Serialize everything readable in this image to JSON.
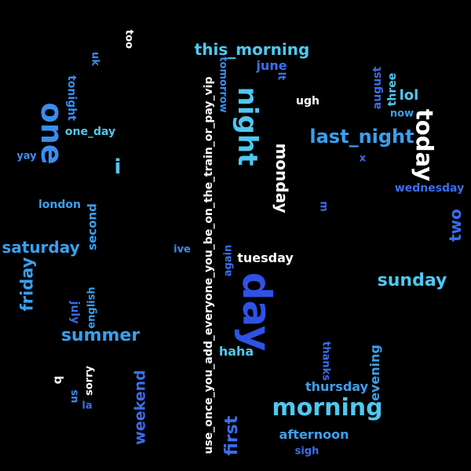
{
  "palette": {
    "background": "#000000",
    "white": "#ffffff",
    "cyan": "#4fc8f0",
    "sky": "#3aa0ee",
    "blue": "#3a6ef0",
    "royal": "#2f52e6"
  },
  "words": [
    {
      "text": "day",
      "color": "#2f52e6"
    },
    {
      "text": "one",
      "color": "#3a8ef0"
    },
    {
      "text": "night",
      "color": "#4fc8f0"
    },
    {
      "text": "today",
      "color": "#ffffff"
    },
    {
      "text": "morning",
      "color": "#4fc8f0"
    },
    {
      "text": "last_night",
      "color": "#3aa0ee"
    },
    {
      "text": "this_morning",
      "color": "#4fc8f0"
    },
    {
      "text": "monday",
      "color": "#ffffff"
    },
    {
      "text": "saturday",
      "color": "#3aa0ee"
    },
    {
      "text": "sunday",
      "color": "#4fc8f0"
    },
    {
      "text": "summer",
      "color": "#3aa0ee"
    },
    {
      "text": "friday",
      "color": "#3aa0ee"
    },
    {
      "text": "first",
      "color": "#3a6ef0"
    },
    {
      "text": "weekend",
      "color": "#3a6ef0"
    },
    {
      "text": "two",
      "color": "#3a6ef0"
    },
    {
      "text": "i",
      "color": "#4fc8f0"
    },
    {
      "text": "use_once_you_add_everyone_you_be_on_the_train_or_pay_vip",
      "color": "#ffffff"
    },
    {
      "text": "tuesday",
      "color": "#ffffff"
    },
    {
      "text": "haha",
      "color": "#4fc8f0"
    },
    {
      "text": "afternoon",
      "color": "#3aa0ee"
    },
    {
      "text": "thursday",
      "color": "#3aa0ee"
    },
    {
      "text": "evening",
      "color": "#3aa0ee"
    },
    {
      "text": "wednesday",
      "color": "#3a6ef0"
    },
    {
      "text": "lol",
      "color": "#4fc8f0"
    },
    {
      "text": "june",
      "color": "#3a6ef0"
    },
    {
      "text": "ugh",
      "color": "#ffffff"
    },
    {
      "text": "second",
      "color": "#3aa0ee"
    },
    {
      "text": "london",
      "color": "#3aa0ee"
    },
    {
      "text": "one_day",
      "color": "#4fc8f0"
    },
    {
      "text": "tonight",
      "color": "#3a8ef0"
    },
    {
      "text": "tomorrow",
      "color": "#3a8ef0"
    },
    {
      "text": "three",
      "color": "#4fc8f0"
    },
    {
      "text": "august",
      "color": "#3a6ef0"
    },
    {
      "text": "now",
      "color": "#3aa0ee"
    },
    {
      "text": "july",
      "color": "#3a6ef0"
    },
    {
      "text": "english",
      "color": "#3aa0ee"
    },
    {
      "text": "sorry",
      "color": "#ffffff"
    },
    {
      "text": "thanks",
      "color": "#3a6ef0"
    },
    {
      "text": "sigh",
      "color": "#3a6ef0"
    },
    {
      "text": "again",
      "color": "#3a6ef0"
    },
    {
      "text": "ive",
      "color": "#3a8ef0"
    },
    {
      "text": "yay",
      "color": "#3a8ef0"
    },
    {
      "text": "uk",
      "color": "#3a8ef0"
    },
    {
      "text": "too",
      "color": "#ffffff"
    },
    {
      "text": "lt",
      "color": "#3a6ef0"
    },
    {
      "text": "x",
      "color": "#3a6ef0"
    },
    {
      "text": "m",
      "color": "#3a6ef0"
    },
    {
      "text": "b",
      "color": "#ffffff"
    },
    {
      "text": "us",
      "color": "#3a8ef0"
    },
    {
      "text": "la",
      "color": "#3a6ef0"
    }
  ]
}
